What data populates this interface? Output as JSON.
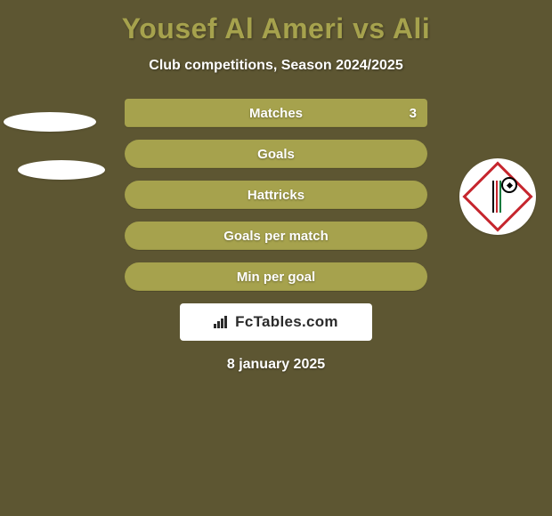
{
  "background_color": "#5d5632",
  "header": {
    "title": "Yousef Al Ameri vs Ali",
    "title_color": "#a6a24d",
    "title_fontsize": 32,
    "subtitle": "Club competitions, Season 2024/2025",
    "subtitle_color": "#ffffff",
    "subtitle_fontsize": 16
  },
  "stats": {
    "row_color_primary": "#a6a24d",
    "row_color_default": "#a6a24d",
    "label_color": "#ffffff",
    "rows": [
      {
        "label": "Matches",
        "left": "",
        "right": "3",
        "highlight": true
      },
      {
        "label": "Goals",
        "left": "",
        "right": ""
      },
      {
        "label": "Hattricks",
        "left": "",
        "right": ""
      },
      {
        "label": "Goals per match",
        "left": "",
        "right": ""
      },
      {
        "label": "Min per goal",
        "left": "",
        "right": ""
      }
    ]
  },
  "watermark": {
    "text": "FcTables.com",
    "box_color": "#ffffff",
    "text_color": "#2b2b2b",
    "icon_color": "#2b2b2b"
  },
  "date": {
    "text": "8 january 2025",
    "color": "#ffffff"
  },
  "badge": {
    "diamond_border_color": "#c6262e",
    "stripe_colors": [
      "#000000",
      "#c6262e",
      "#007a3d"
    ]
  }
}
